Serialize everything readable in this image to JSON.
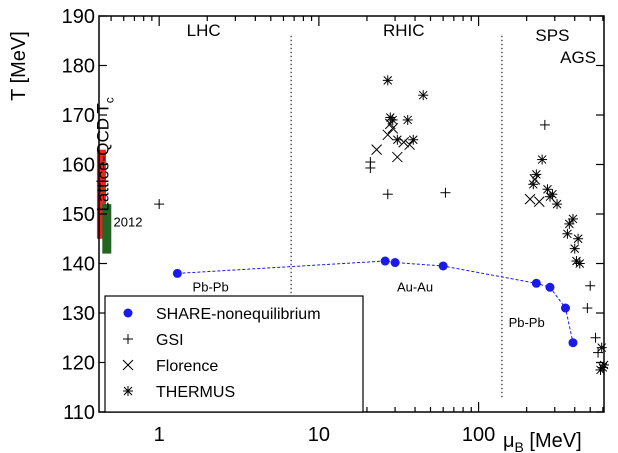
{
  "chart_data": {
    "type": "scatter",
    "xscale": "log",
    "xlim": [
      0.42,
      610
    ],
    "ylim": [
      110,
      190
    ],
    "xticks": [
      1,
      10,
      100
    ],
    "xtick_labels": [
      "1",
      "10",
      "100"
    ],
    "yticks": [
      110,
      120,
      130,
      140,
      150,
      160,
      170,
      180,
      190
    ],
    "ytick_labels": [
      "110",
      "120",
      "130",
      "140",
      "150",
      "160",
      "170",
      "180",
      "190"
    ],
    "ylabel": "T [MeV]",
    "xlabel_main": "μ",
    "xlabel_sub": "B",
    "xlabel_unit": " [MeV]",
    "grid": false,
    "legend_position": "bottom-left",
    "region_dividers": [
      6.7,
      140
    ],
    "region_labels": [
      {
        "text": "LHC",
        "x": 1.9,
        "y": 186
      },
      {
        "text": "RHIC",
        "x": 34,
        "y": 186
      },
      {
        "text": "SPS",
        "x": 290,
        "y": 185
      },
      {
        "text": "AGS",
        "x": 420,
        "y": 180.5
      }
    ],
    "annotations": [
      {
        "text": "Pb-Pb",
        "x": 2.1,
        "y": 134.3
      },
      {
        "text": "Au-Au",
        "x": 40,
        "y": 134.3
      },
      {
        "text": "Pb-Pb",
        "x": 200,
        "y": 127.2
      }
    ],
    "lattice": {
      "label": "Lattice-QCD T",
      "label_sub": "c",
      "year_label": "2012",
      "bars": [
        {
          "x": 0.435,
          "ymin": 145,
          "ymax": 163,
          "color": "#ee2222"
        },
        {
          "x": 0.47,
          "ymin": 142,
          "ymax": 152,
          "color": "#226622"
        }
      ]
    },
    "series": [
      {
        "name": "SHARE-nonequilibrium",
        "marker": "circle",
        "color": "#1a1aee",
        "connected": true,
        "points": [
          [
            1.3,
            138
          ],
          [
            26,
            140.5
          ],
          [
            30,
            140.2
          ],
          [
            60,
            139.5
          ],
          [
            230,
            136
          ],
          [
            280,
            135.2
          ],
          [
            350,
            131
          ],
          [
            390,
            124
          ]
        ]
      },
      {
        "name": "GSI",
        "marker": "plus",
        "color": "#000000",
        "points": [
          [
            1.0,
            152
          ],
          [
            21,
            160.5
          ],
          [
            21,
            159.3
          ],
          [
            27,
            154
          ],
          [
            62,
            154.3
          ],
          [
            260,
            168
          ],
          [
            480,
            131
          ],
          [
            500,
            135.5
          ],
          [
            540,
            125
          ],
          [
            560,
            122
          ]
        ]
      },
      {
        "name": "Florence",
        "marker": "cross",
        "color": "#000000",
        "points": [
          [
            23,
            163
          ],
          [
            27,
            166
          ],
          [
            28,
            168.2
          ],
          [
            29,
            167.3
          ],
          [
            31,
            161.5
          ],
          [
            34,
            164.5
          ],
          [
            37,
            164
          ],
          [
            210,
            153
          ],
          [
            225,
            157
          ],
          [
            240,
            152.5
          ]
        ]
      },
      {
        "name": "THERMUS",
        "marker": "star",
        "color": "#000000",
        "points": [
          [
            27,
            177
          ],
          [
            28,
            169.5
          ],
          [
            29,
            169
          ],
          [
            31,
            165
          ],
          [
            36,
            169
          ],
          [
            39,
            165
          ],
          [
            45,
            174
          ],
          [
            220,
            156
          ],
          [
            230,
            158
          ],
          [
            250,
            161
          ],
          [
            270,
            155
          ],
          [
            280,
            153.5
          ],
          [
            290,
            154
          ],
          [
            310,
            152
          ],
          [
            360,
            146
          ],
          [
            370,
            148
          ],
          [
            390,
            149
          ],
          [
            400,
            143
          ],
          [
            410,
            140.5
          ],
          [
            420,
            145
          ],
          [
            430,
            140
          ],
          [
            580,
            118.5
          ],
          [
            600,
            119
          ],
          [
            590,
            123
          ],
          [
            610,
            119.5
          ]
        ]
      }
    ]
  }
}
